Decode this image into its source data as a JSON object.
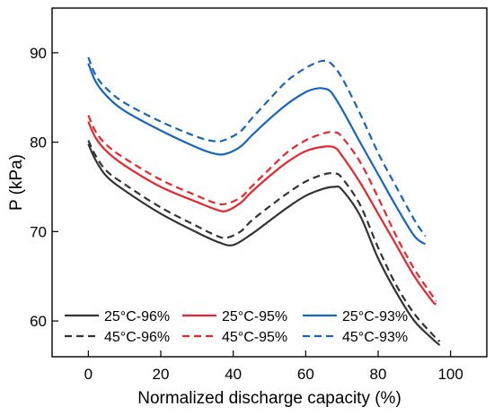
{
  "chart_data": {
    "type": "line",
    "title": "",
    "xlabel": "Normalized discharge capacity (%)",
    "ylabel": "P (kPa)",
    "xlim": [
      -10,
      110
    ],
    "ylim": [
      56,
      95
    ],
    "xticks": [
      0,
      20,
      40,
      60,
      80,
      100
    ],
    "yticks": [
      60,
      70,
      80,
      90
    ],
    "grid": false,
    "legend_position": "bottom-left",
    "legend_columns": 3,
    "series": [
      {
        "name": "25°C-96%",
        "color": "#333333",
        "dash": "solid",
        "x": [
          0,
          2,
          5,
          10,
          20,
          30,
          36,
          40,
          45,
          50,
          55,
          60,
          65,
          68,
          70,
          75,
          80,
          85,
          90,
          95,
          97
        ],
        "y": [
          79.8,
          78.0,
          76.2,
          74.6,
          72.0,
          69.9,
          68.8,
          68.5,
          69.7,
          71.2,
          72.7,
          74.0,
          74.8,
          75.0,
          74.7,
          71.8,
          67.0,
          63.2,
          60.0,
          58.0,
          57.3
        ]
      },
      {
        "name": "25°C-95%",
        "color": "#e8272d",
        "dash": "solid",
        "x": [
          0,
          2,
          5,
          10,
          20,
          30,
          35,
          38,
          42,
          45,
          50,
          55,
          60,
          65,
          68,
          70,
          75,
          80,
          85,
          90,
          95,
          96
        ],
        "y": [
          82.3,
          80.5,
          79.0,
          77.4,
          75.0,
          73.3,
          72.5,
          72.3,
          73.2,
          74.4,
          76.2,
          77.8,
          79.0,
          79.5,
          79.4,
          78.5,
          75.5,
          72.0,
          68.5,
          65.0,
          62.2,
          61.9
        ]
      },
      {
        "name": "25°C-93%",
        "color": "#1565c0",
        "dash": "solid",
        "x": [
          0,
          2,
          5,
          10,
          20,
          30,
          35,
          38,
          42,
          45,
          50,
          55,
          60,
          63,
          65,
          67,
          70,
          75,
          80,
          85,
          90,
          93
        ],
        "y": [
          88.8,
          86.8,
          85.2,
          83.5,
          81.3,
          79.4,
          78.7,
          78.7,
          79.5,
          80.7,
          82.6,
          84.3,
          85.6,
          86.0,
          86.0,
          85.6,
          83.7,
          80.0,
          76.4,
          72.8,
          69.5,
          68.6
        ]
      },
      {
        "name": "45°C-96%",
        "color": "#333333",
        "dash": "dashed",
        "x": [
          0,
          2,
          5,
          10,
          20,
          30,
          35,
          38,
          42,
          45,
          50,
          55,
          60,
          65,
          68,
          70,
          75,
          80,
          85,
          90,
          95,
          97
        ],
        "y": [
          80.2,
          78.5,
          76.8,
          75.3,
          72.7,
          70.6,
          69.6,
          69.3,
          70.0,
          71.2,
          72.8,
          74.3,
          75.6,
          76.4,
          76.5,
          76.0,
          73.0,
          68.2,
          64.0,
          60.8,
          58.5,
          57.7
        ]
      },
      {
        "name": "45°C-95%",
        "color": "#e8272d",
        "dash": "dashed",
        "x": [
          0,
          2,
          5,
          10,
          20,
          30,
          35,
          38,
          42,
          45,
          50,
          55,
          60,
          65,
          68,
          70,
          75,
          80,
          85,
          90,
          95,
          96
        ],
        "y": [
          83.0,
          81.2,
          79.7,
          78.2,
          75.8,
          74.0,
          73.2,
          73.1,
          73.8,
          75.0,
          77.0,
          78.9,
          80.2,
          81.0,
          81.1,
          80.6,
          77.8,
          73.8,
          69.5,
          65.8,
          62.8,
          62.2
        ]
      },
      {
        "name": "45°C-93%",
        "color": "#1565c0",
        "dash": "dashed",
        "x": [
          0,
          2,
          5,
          10,
          20,
          30,
          35,
          38,
          42,
          45,
          50,
          55,
          60,
          63,
          65,
          67,
          70,
          75,
          80,
          85,
          90,
          93
        ],
        "y": [
          89.5,
          87.5,
          86.0,
          84.4,
          82.3,
          80.6,
          80.1,
          80.3,
          81.2,
          82.6,
          84.8,
          86.9,
          88.3,
          88.9,
          89.1,
          88.8,
          87.2,
          83.2,
          78.8,
          75.0,
          71.3,
          69.5
        ]
      }
    ]
  }
}
